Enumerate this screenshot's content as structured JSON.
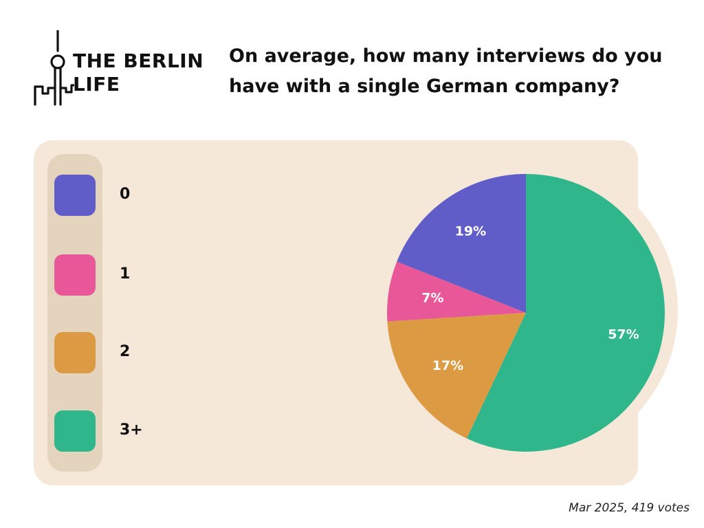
{
  "logo": {
    "line1": "THE BERLIN",
    "line2": "LIFE",
    "icon": "tv-tower-skyline-icon"
  },
  "title": "On average, how many interviews do you have with a single German company?",
  "footnote": "Mar 2025, 419 votes",
  "colors": {
    "panel": "#f6e8d8",
    "legend_strip": "#e5d4bd"
  },
  "chart_data": {
    "type": "pie",
    "title": "On average, how many interviews do you have with a single German company?",
    "categories": [
      "0",
      "1",
      "2",
      "3+"
    ],
    "values": [
      19,
      7,
      17,
      57
    ],
    "labels": [
      "19%",
      "7%",
      "17%",
      "57%"
    ],
    "colors": [
      "#605dc8",
      "#e85797",
      "#dc9a43",
      "#2fb68a"
    ],
    "legend_placement": "left",
    "start": "top, counter-clockwise"
  }
}
